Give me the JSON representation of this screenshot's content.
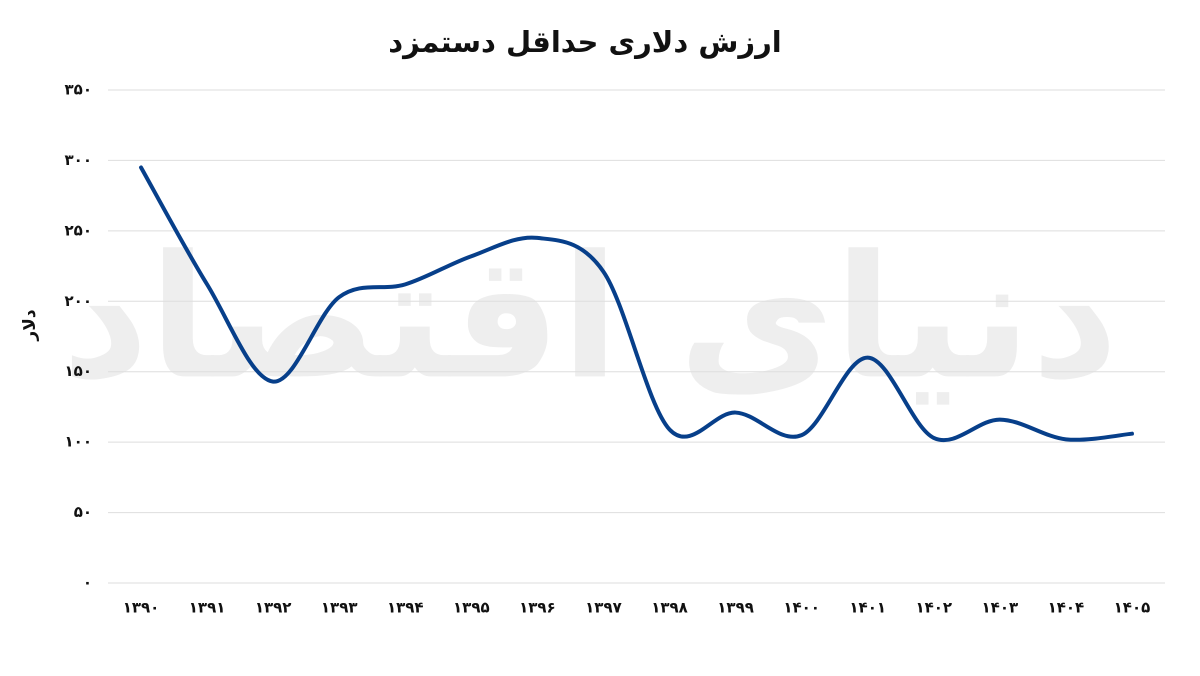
{
  "chart_data": {
    "type": "line",
    "title": "ارزش دلاری حداقل دستمزد",
    "y_label": "دلار",
    "watermark": "دنیای اقتصاد",
    "categories": [
      "۱۳۹۰",
      "۱۳۹۱",
      "۱۳۹۲",
      "۱۳۹۳",
      "۱۳۹۴",
      "۱۳۹۵",
      "۱۳۹۶",
      "۱۳۹۷",
      "۱۳۹۸",
      "۱۳۹۹",
      "۱۴۰۰",
      "۱۴۰۱",
      "۱۴۰۲",
      "۱۴۰۳",
      "۱۴۰۴",
      "۱۴۰۵"
    ],
    "series": [
      {
        "color": "#073f8a",
        "values": [
          295,
          212,
          143,
          203,
          212,
          232,
          245,
          221,
          109,
          121,
          105,
          160,
          103,
          116,
          102,
          106
        ]
      }
    ],
    "ylim": [
      0,
      350
    ],
    "yticks": [
      {
        "value": 0,
        "label": "۰"
      },
      {
        "value": 50,
        "label": "۵۰"
      },
      {
        "value": 100,
        "label": "۱۰۰"
      },
      {
        "value": 150,
        "label": "۱۵۰"
      },
      {
        "value": 200,
        "label": "۲۰۰"
      },
      {
        "value": 250,
        "label": "۲۵۰"
      },
      {
        "value": 300,
        "label": "۳۰۰"
      },
      {
        "value": 350,
        "label": "۳۵۰"
      }
    ],
    "grid": true,
    "smooth": true
  }
}
